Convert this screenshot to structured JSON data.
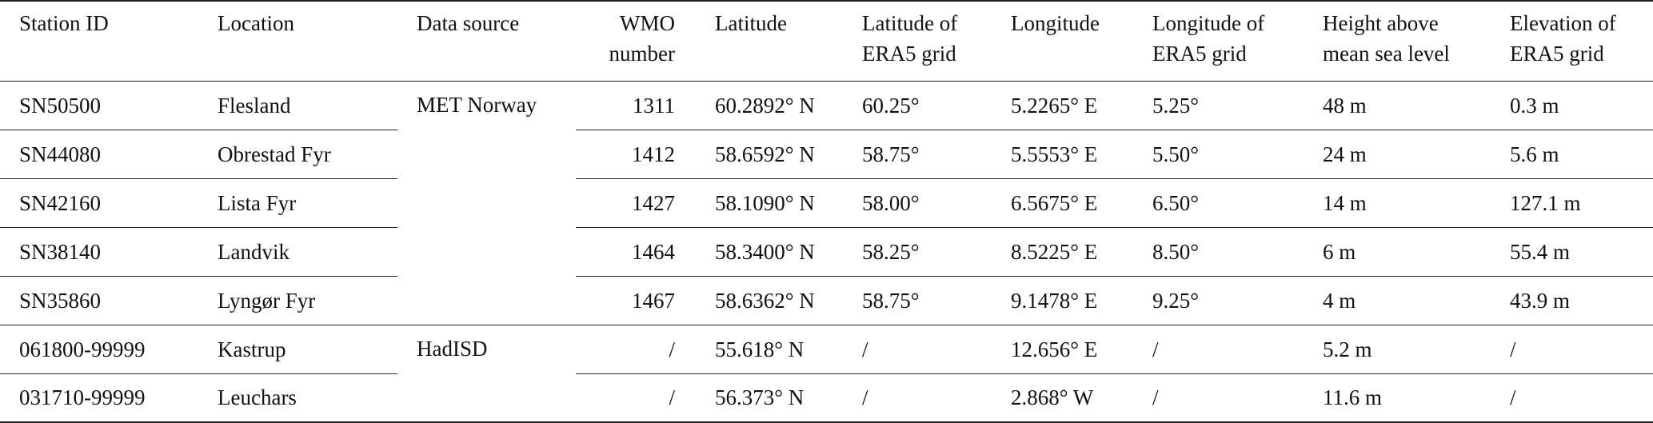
{
  "table": {
    "header": [
      [
        "Station ID"
      ],
      [
        "Location"
      ],
      [
        "Data source"
      ],
      [
        "WMO",
        "number"
      ],
      [
        "Latitude"
      ],
      [
        "Latitude of",
        "ERA5 grid"
      ],
      [
        "Longitude"
      ],
      [
        "Longitude of",
        "ERA5 grid"
      ],
      [
        "Height above",
        "mean sea level"
      ],
      [
        "Elevation of",
        "ERA5 grid"
      ]
    ],
    "groups": [
      {
        "source": "MET Norway",
        "rows": [
          [
            "SN50500",
            "Flesland",
            1311,
            "60.2892° N",
            "60.25°",
            "5.2265° E",
            "5.25°",
            "48 m",
            "0.3 m"
          ],
          [
            "SN44080",
            "Obrestad Fyr",
            1412,
            "58.6592° N",
            "58.75°",
            "5.5553° E",
            "5.50°",
            "24 m",
            "5.6 m"
          ],
          [
            "SN42160",
            "Lista Fyr",
            1427,
            "58.1090° N",
            "58.00°",
            "6.5675° E",
            "6.50°",
            "14 m",
            "127.1 m"
          ],
          [
            "SN38140",
            "Landvik",
            1464,
            "58.3400° N",
            "58.25°",
            "8.5225° E",
            "8.50°",
            "6 m",
            "55.4 m"
          ],
          [
            "SN35860",
            "Lyngør Fyr",
            1467,
            "58.6362° N",
            "58.75°",
            "9.1478° E",
            "9.25°",
            "4 m",
            "43.9 m"
          ]
        ]
      },
      {
        "source": "HadISD",
        "rows": [
          [
            "061800-99999",
            "Kastrup",
            "/",
            "55.618° N",
            "/",
            "12.656° E",
            "/",
            "5.2 m",
            "/"
          ],
          [
            "031710-99999",
            "Leuchars",
            "/",
            "56.373° N",
            "/",
            "2.868° W",
            "/",
            "11.6 m",
            "/"
          ]
        ]
      }
    ]
  }
}
